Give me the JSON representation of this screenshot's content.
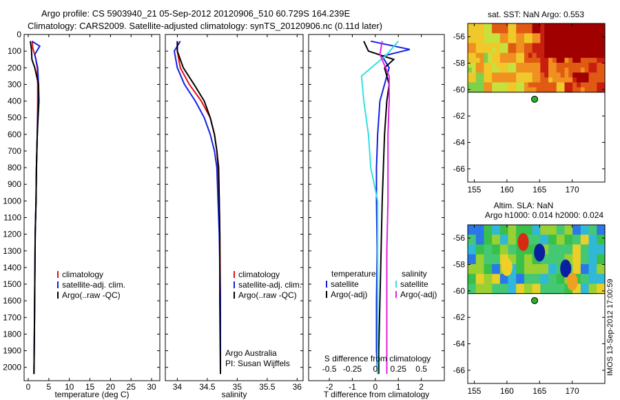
{
  "header": {
    "line1": "Argo profile: CS 5903940_21 05-Sep-2012 20120906_510 60.729S 164.239E",
    "line2": "Climatology: CARS2009. Satellite-adjusted climatology: synTS_20120906.nc (0.11d later)"
  },
  "side_stamp": "IMOS 13-Sep-2012 17:00:59",
  "colors": {
    "climatology": "#e01010",
    "satellite": "#1020e0",
    "argo": "#000000",
    "sal_satellite": "#30e0e0",
    "sal_argo": "#e020e0",
    "marker": "#2eb02e"
  },
  "chart_data": [
    {
      "id": "temperature",
      "type": "line",
      "xlabel": "temperature (deg C)",
      "ylabel": "",
      "xlim": [
        -1,
        32
      ],
      "ylim": [
        2080,
        0
      ],
      "xticks": [
        0,
        5,
        10,
        15,
        20,
        25,
        30
      ],
      "xtick_labels": [
        "0",
        "5",
        "10",
        "15",
        "20",
        "25",
        "30"
      ],
      "yticks": [
        0,
        100,
        200,
        300,
        400,
        500,
        600,
        700,
        800,
        900,
        1000,
        1100,
        1200,
        1300,
        1400,
        1500,
        1600,
        1700,
        1800,
        1900,
        2000
      ],
      "ytick_labels": [
        "0",
        "100",
        "200",
        "300",
        "400",
        "500",
        "600",
        "700",
        "800",
        "900",
        "1000",
        "1100",
        "1200",
        "1300",
        "1400",
        "1500",
        "1600",
        "1700",
        "1800",
        "1900",
        "2000"
      ],
      "legend": [
        "climatology",
        "satellite-adj. clim.",
        "Argo(..raw -QC)"
      ],
      "series": [
        {
          "name": "climatology",
          "x": [
            1.0,
            1.1,
            1.8,
            2.2,
            2.3,
            2.3,
            2.2,
            2.0,
            1.9,
            1.7,
            1.6,
            1.5,
            1.4
          ],
          "y": [
            40,
            80,
            140,
            200,
            300,
            400,
            600,
            800,
            1000,
            1200,
            1500,
            1800,
            2040
          ]
        },
        {
          "name": "satellite-adj. clim.",
          "x": [
            0.9,
            2.8,
            1.6,
            2.3,
            2.5,
            2.4,
            2.2,
            2.0,
            1.9,
            1.7,
            1.6,
            1.5,
            1.4
          ],
          "y": [
            40,
            70,
            120,
            200,
            300,
            400,
            600,
            800,
            1000,
            1200,
            1500,
            1800,
            2040
          ]
        },
        {
          "name": "Argo(..raw -QC)",
          "x": [
            0.5,
            0.8,
            0.9,
            1.6,
            2.5,
            2.6,
            2.2,
            2.0,
            1.9,
            1.7,
            1.6,
            1.5,
            1.4
          ],
          "y": [
            40,
            90,
            150,
            200,
            300,
            400,
            600,
            800,
            1000,
            1200,
            1500,
            1800,
            2040
          ]
        }
      ]
    },
    {
      "id": "salinity",
      "type": "line",
      "xlabel": "salinity",
      "ylabel": "",
      "xlim": [
        33.8,
        36.1
      ],
      "ylim": [
        2080,
        0
      ],
      "xticks": [
        34,
        34.5,
        35,
        35.5,
        36
      ],
      "xtick_labels": [
        "34",
        "34.5",
        "35",
        "35.5",
        "36"
      ],
      "legend": [
        "climatology",
        "satellite-adj. clim.",
        "Argo(..raw -QC)"
      ],
      "annotation": [
        "Argo Australia",
        "PI: Susan Wijffels"
      ],
      "series": [
        {
          "name": "climatology",
          "x": [
            34.0,
            34.0,
            34.05,
            34.2,
            34.4,
            34.55,
            34.62,
            34.66,
            34.68,
            34.7,
            34.71,
            34.72,
            34.72
          ],
          "y": [
            40,
            100,
            200,
            300,
            400,
            500,
            600,
            700,
            800,
            1000,
            1200,
            1600,
            2040
          ]
        },
        {
          "name": "satellite-adj. clim.",
          "x": [
            34.05,
            33.95,
            34.0,
            34.12,
            34.3,
            34.45,
            34.55,
            34.62,
            34.66,
            34.68,
            34.7,
            34.72,
            34.72
          ],
          "y": [
            40,
            100,
            200,
            300,
            400,
            500,
            600,
            700,
            800,
            1000,
            1200,
            1600,
            2040
          ]
        },
        {
          "name": "Argo(..raw -QC)",
          "x": [
            34.0,
            34.0,
            34.1,
            34.28,
            34.45,
            34.55,
            34.62,
            34.66,
            34.69,
            34.7,
            34.71,
            34.71,
            34.72
          ],
          "y": [
            40,
            100,
            200,
            300,
            400,
            500,
            600,
            700,
            800,
            1000,
            1200,
            1600,
            2040
          ]
        }
      ]
    },
    {
      "id": "differences",
      "type": "line",
      "xlabel": "T difference from climatology",
      "xlabel_top": "S difference from climatology",
      "xlim": [
        -2.9,
        3.0
      ],
      "ylim": [
        2080,
        0
      ],
      "xticks": [
        -2,
        -1,
        0,
        1,
        2
      ],
      "xtick_labels": [
        "-2",
        "-1",
        "0",
        "1",
        "2"
      ],
      "top_ticks_labels": [
        "-0.5",
        "-0.25",
        "0",
        "0.25",
        "0.5"
      ],
      "legend_left": {
        "title": "temperature",
        "items": [
          "satellite",
          "Argo(-adj)"
        ]
      },
      "legend_right": {
        "title": "salinity",
        "items": [
          "satellite",
          "Argo(-adj)"
        ]
      },
      "series": [
        {
          "name": "T satellite",
          "x": [
            -0.2,
            1.5,
            0.3,
            0.6,
            0.4,
            0.2,
            0.1,
            0.05,
            0.05,
            0.08,
            0.05,
            0.05,
            0.1
          ],
          "y": [
            40,
            90,
            130,
            200,
            300,
            400,
            600,
            800,
            1000,
            1300,
            1600,
            1900,
            2040
          ]
        },
        {
          "name": "T Argo(-adj)",
          "x": [
            -0.5,
            -0.3,
            0.8,
            0.4,
            0.6,
            0.5,
            0.4,
            0.35,
            0.3,
            0.25,
            0.2,
            0.15,
            0.15
          ],
          "y": [
            40,
            100,
            150,
            200,
            300,
            400,
            600,
            800,
            1000,
            1300,
            1600,
            1900,
            2040
          ]
        },
        {
          "name": "S satellite",
          "x": [
            1.0,
            0.5,
            -0.6,
            -0.5,
            -0.3,
            -0.2,
            0.1,
            0.1,
            0.1,
            0.1
          ],
          "y": [
            40,
            120,
            250,
            400,
            600,
            800,
            1000,
            1300,
            1600,
            2040
          ]
        },
        {
          "name": "S Argo(-adj)",
          "x": [
            0.3,
            0.2,
            0.6,
            0.6,
            0.55,
            0.55,
            0.55,
            0.5,
            0.5,
            0.5
          ],
          "y": [
            40,
            120,
            250,
            400,
            600,
            800,
            1000,
            1300,
            1600,
            2040
          ]
        }
      ]
    },
    {
      "id": "sst-map",
      "type": "heatmap",
      "title": "sat. SST: NaN Argo: 0.553",
      "xlim": [
        154,
        175
      ],
      "ylim": [
        -67,
        -55
      ],
      "xticks": [
        155,
        160,
        165,
        170
      ],
      "xtick_labels": [
        "155",
        "160",
        "165",
        "170"
      ],
      "yticks": [
        -56,
        -58,
        -60,
        -62,
        -64,
        -66
      ],
      "ytick_labels": [
        "-56",
        "-58",
        "-60",
        "-62",
        "-64",
        "-66"
      ],
      "marker": {
        "lon": 164.24,
        "lat": -60.73
      }
    },
    {
      "id": "sla-map",
      "type": "heatmap",
      "title_line1": "Altim. SLA: NaN",
      "title_line2": "Argo h1000: 0.014 h2000: 0.024",
      "xlim": [
        154,
        175
      ],
      "ylim": [
        -67,
        -55
      ],
      "xticks": [
        155,
        160,
        165,
        170
      ],
      "xtick_labels": [
        "155",
        "160",
        "165",
        "170"
      ],
      "yticks": [
        -56,
        -58,
        -60,
        -62,
        -64,
        -66
      ],
      "ytick_labels": [
        "-56",
        "-58",
        "-60",
        "-62",
        "-64",
        "-66"
      ],
      "marker": {
        "lon": 164.24,
        "lat": -60.73
      }
    }
  ]
}
